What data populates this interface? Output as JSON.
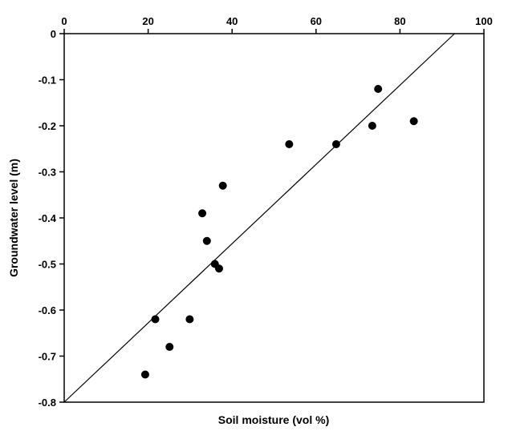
{
  "chart_data": {
    "type": "scatter",
    "xlabel": "Soil moisture (vol %)",
    "ylabel": "Groundwater level (m)",
    "xlim": [
      0,
      100
    ],
    "ylim": [
      -0.8,
      0
    ],
    "x_axis_position": "top",
    "x_ticks": [
      0,
      20,
      40,
      60,
      80,
      100
    ],
    "x_tick_labels": [
      "0",
      "20",
      "40",
      "60",
      "80",
      "100"
    ],
    "y_ticks": [
      0,
      -0.1,
      -0.2,
      -0.3,
      -0.4,
      -0.5,
      -0.6,
      -0.7,
      -0.8
    ],
    "y_tick_labels": [
      "0",
      "-0.1",
      "-0.2",
      "-0.3",
      "-0.4",
      "-0.5",
      "-0.6",
      "-0.7",
      "-0.8"
    ],
    "grid": false,
    "legend": "none",
    "series": [
      {
        "type": "scatter",
        "color": "#000000",
        "points": [
          {
            "x": 19.3,
            "y": -0.74
          },
          {
            "x": 21.7,
            "y": -0.62
          },
          {
            "x": 25.1,
            "y": -0.68
          },
          {
            "x": 29.9,
            "y": -0.62
          },
          {
            "x": 32.9,
            "y": -0.39
          },
          {
            "x": 34.0,
            "y": -0.45
          },
          {
            "x": 35.9,
            "y": -0.5
          },
          {
            "x": 36.9,
            "y": -0.51
          },
          {
            "x": 37.8,
            "y": -0.33
          },
          {
            "x": 53.6,
            "y": -0.24
          },
          {
            "x": 64.8,
            "y": -0.24
          },
          {
            "x": 73.4,
            "y": -0.2
          },
          {
            "x": 74.8,
            "y": -0.12
          },
          {
            "x": 83.3,
            "y": -0.19
          }
        ]
      },
      {
        "type": "line",
        "color": "#000000",
        "points": [
          {
            "x": 0,
            "y": -0.8
          },
          {
            "x": 93.0,
            "y": 0
          }
        ]
      }
    ]
  }
}
